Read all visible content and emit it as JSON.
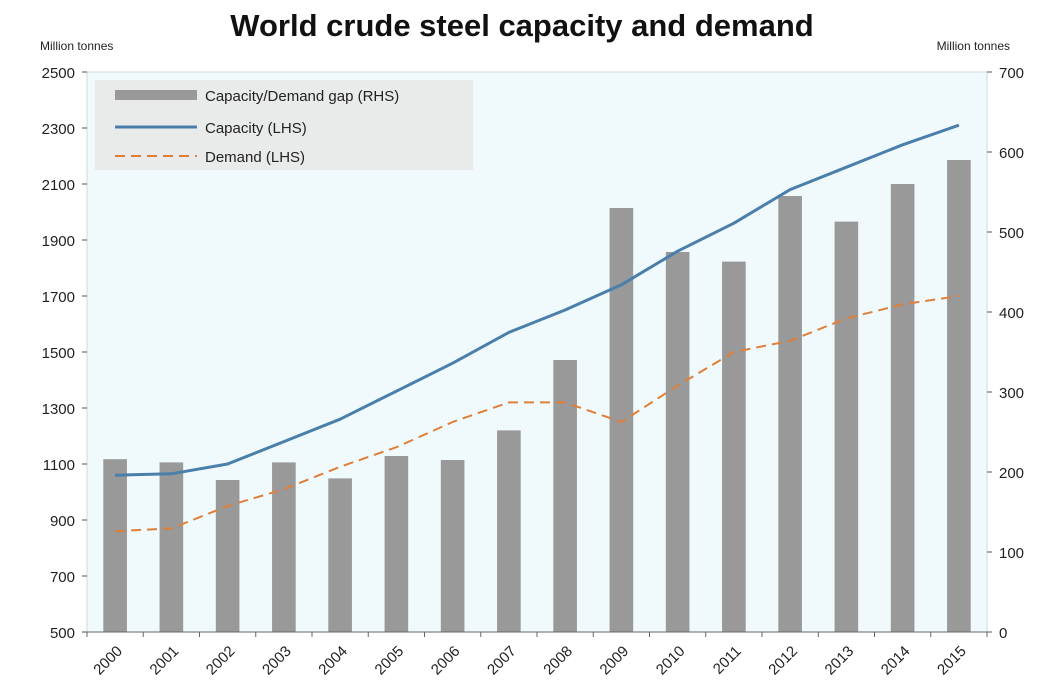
{
  "chart_data": {
    "type": "bar+line",
    "title": "World crude steel capacity and demand",
    "ylabel_left": "Million tonnes",
    "ylabel_right": "Million tonnes",
    "categories": [
      "2000",
      "2001",
      "2002",
      "2003",
      "2004",
      "2005",
      "2006",
      "2007",
      "2008",
      "2009",
      "2010",
      "2011",
      "2012",
      "2013",
      "2014",
      "2015"
    ],
    "ylim_left": [
      500,
      2500
    ],
    "yticks_left": [
      "2500",
      "2300",
      "2100",
      "1900",
      "1700",
      "1500",
      "1300",
      "1100",
      "900",
      "700",
      "500"
    ],
    "ylim_right": [
      0,
      700
    ],
    "yticks_right": [
      "700",
      "600",
      "500",
      "400",
      "300",
      "200",
      "100",
      "0"
    ],
    "legend_position": "top-left",
    "series": [
      {
        "name": "Capacity/Demand gap (RHS)",
        "type": "bar",
        "axis": "right",
        "color": "#999999",
        "values": [
          216,
          212,
          190,
          212,
          192,
          220,
          215,
          252,
          340,
          530,
          475,
          463,
          545,
          513,
          560,
          590
        ]
      },
      {
        "name": "Capacity (LHS)",
        "type": "line",
        "axis": "left",
        "color": "#4a7fab",
        "values": [
          1060,
          1065,
          1100,
          1180,
          1260,
          1360,
          1460,
          1570,
          1650,
          1740,
          1860,
          1960,
          2080,
          2160,
          2240,
          2310
        ]
      },
      {
        "name": "Demand (LHS)",
        "type": "line",
        "axis": "left",
        "style": "dashed",
        "color": "#e07f3a",
        "values": [
          860,
          870,
          950,
          1010,
          1090,
          1160,
          1250,
          1320,
          1320,
          1250,
          1380,
          1500,
          1540,
          1620,
          1670,
          1700
        ]
      }
    ]
  }
}
